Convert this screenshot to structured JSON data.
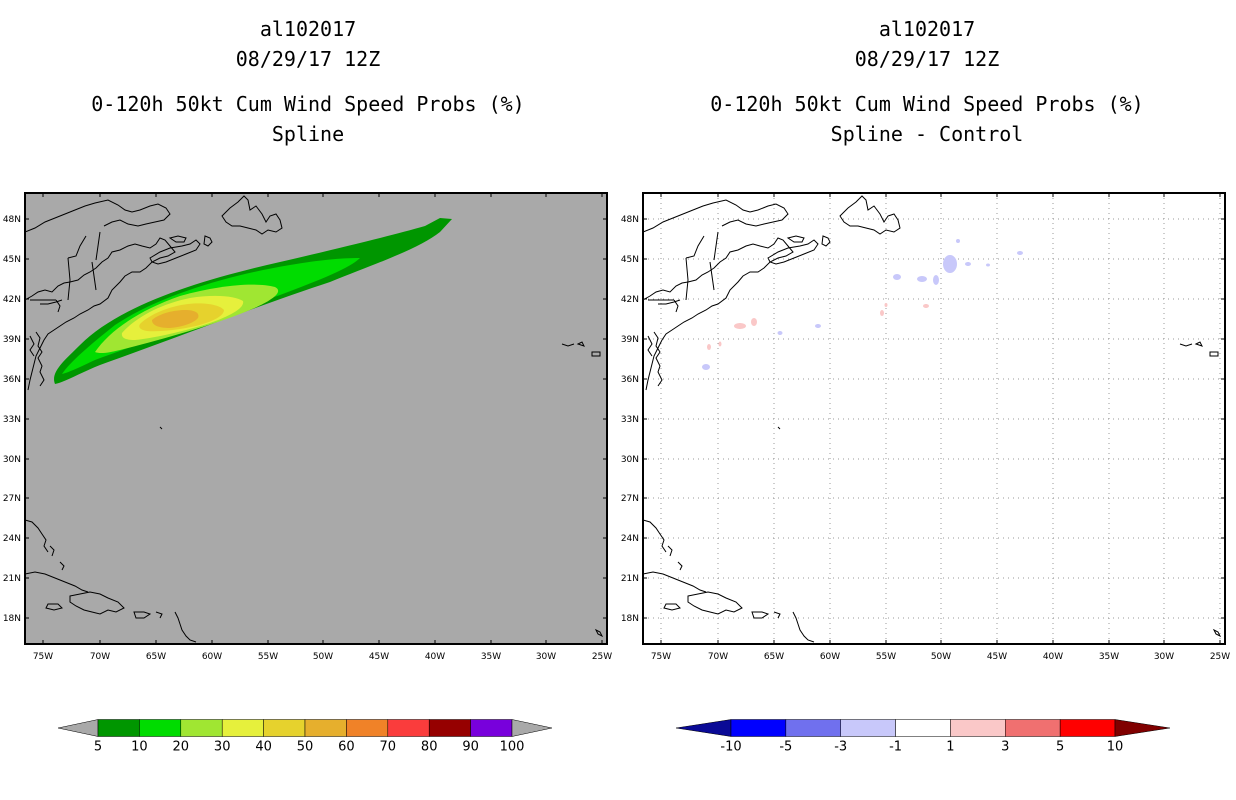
{
  "colors": {
    "land_bg": "#a9a9a9",
    "diff_bg": "#ffffff",
    "coast": "#000000",
    "grid": "#999999"
  },
  "left_panel": {
    "storm_id": "al102017",
    "datetime": "08/29/17 12Z",
    "product": "0-120h 50kt Cum Wind Speed Probs (%)",
    "subtitle": "Spline"
  },
  "right_panel": {
    "storm_id": "al102017",
    "datetime": "08/29/17 12Z",
    "product": "0-120h 50kt Cum Wind Speed Probs (%)",
    "subtitle": "Spline - Control"
  },
  "lat_labels": [
    "48N",
    "45N",
    "42N",
    "39N",
    "36N",
    "33N",
    "30N",
    "27N",
    "24N",
    "21N",
    "18N"
  ],
  "lon_labels": [
    "75W",
    "70W",
    "65W",
    "60W",
    "55W",
    "50W",
    "45W",
    "40W",
    "35W",
    "30W",
    "25W"
  ],
  "colorbar_prob": {
    "labels": [
      "5",
      "10",
      "20",
      "30",
      "40",
      "50",
      "60",
      "70",
      "80",
      "90",
      "100"
    ],
    "colors": [
      "#009600",
      "#00dc00",
      "#a0e632",
      "#e6f03c",
      "#e6d22d",
      "#e6af2d",
      "#f08228",
      "#fa3c3c",
      "#960000",
      "#7800dc"
    ],
    "under_color": "#a9a9a9",
    "over_color": "#a9a9a9"
  },
  "colorbar_diff": {
    "labels": [
      "-10",
      "-5",
      "-3",
      "-1",
      "1",
      "3",
      "5",
      "10"
    ],
    "colors": [
      "#0000ff",
      "#7070ee",
      "#c8c8fa",
      "#ffffff",
      "#fac8c8",
      "#f07070",
      "#ff0000"
    ],
    "under_color": "#0a0a96",
    "over_color": "#800000"
  },
  "chart_data": {
    "type": "heatmap",
    "title": "0-120h 50kt Cum Wind Speed Probs (%)",
    "x_range": [
      "76W",
      "25W"
    ],
    "y_range": [
      "16N",
      "49N"
    ],
    "spline_max_category": "40-50",
    "spline_swath_levels": [
      "5",
      "10",
      "20",
      "30",
      "40"
    ]
  }
}
